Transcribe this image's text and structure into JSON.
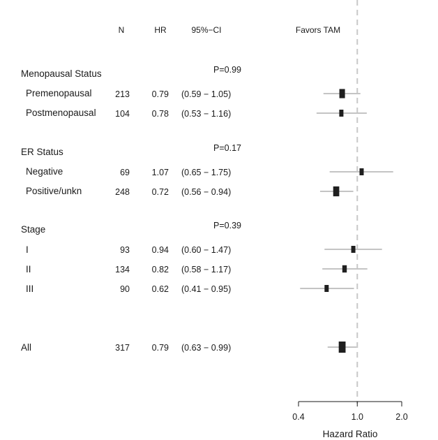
{
  "chart_data": {
    "type": "forest",
    "headers": {
      "n": "N",
      "hr": "HR",
      "ci": "95%−CI",
      "favors": "Favors TAM"
    },
    "groups": [
      {
        "name": "Menopausal Status",
        "p_value": "P=0.99",
        "rows": [
          {
            "label": "Premenopausal",
            "n": "213",
            "hr": 0.79,
            "hr_text": "0.79",
            "lo": 0.59,
            "hi": 1.05,
            "ci_text": "(0.59 − 1.05)"
          },
          {
            "label": "Postmenopausal",
            "n": "104",
            "hr": 0.78,
            "hr_text": "0.78",
            "lo": 0.53,
            "hi": 1.16,
            "ci_text": "(0.53 − 1.16)"
          }
        ]
      },
      {
        "name": "ER Status",
        "p_value": "P=0.17",
        "rows": [
          {
            "label": "Negative",
            "n": "69",
            "hr": 1.07,
            "hr_text": "1.07",
            "lo": 0.65,
            "hi": 1.75,
            "ci_text": "(0.65 − 1.75)"
          },
          {
            "label": "Positive/unkn",
            "n": "248",
            "hr": 0.72,
            "hr_text": "0.72",
            "lo": 0.56,
            "hi": 0.94,
            "ci_text": "(0.56 − 0.94)"
          }
        ]
      },
      {
        "name": "Stage",
        "p_value": "P=0.39",
        "rows": [
          {
            "label": "I",
            "n": "93",
            "hr": 0.94,
            "hr_text": "0.94",
            "lo": 0.6,
            "hi": 1.47,
            "ci_text": "(0.60 − 1.47)"
          },
          {
            "label": "II",
            "n": "134",
            "hr": 0.82,
            "hr_text": "0.82",
            "lo": 0.58,
            "hi": 1.17,
            "ci_text": "(0.58 − 1.17)"
          },
          {
            "label": "III",
            "n": "90",
            "hr": 0.62,
            "hr_text": "0.62",
            "lo": 0.41,
            "hi": 0.95,
            "ci_text": "(0.41 − 0.95)"
          }
        ]
      }
    ],
    "overall": {
      "label": "All",
      "n": "317",
      "hr": 0.79,
      "hr_text": "0.79",
      "lo": 0.63,
      "hi": 0.99,
      "ci_text": "(0.63 − 0.99)"
    },
    "x_axis": {
      "label": "Hazard Ratio",
      "scale": "log",
      "ticks": [
        0.4,
        1.0,
        2.0
      ],
      "tick_labels": [
        "0.4",
        "1.0",
        "2.0"
      ],
      "xlim": [
        0.4,
        2.0
      ],
      "reference": 1.0
    }
  }
}
